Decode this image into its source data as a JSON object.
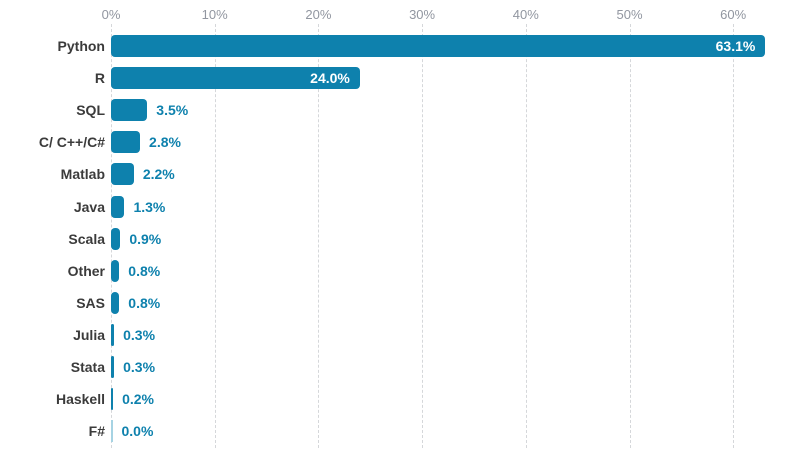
{
  "chart_data": {
    "type": "bar",
    "orientation": "horizontal",
    "title": "",
    "xlabel": "",
    "ylabel": "",
    "categories": [
      "Python",
      "R",
      "SQL",
      "C/ C++/C#",
      "Matlab",
      "Java",
      "Scala",
      "Other",
      "SAS",
      "Julia",
      "Stata",
      "Haskell",
      "F#"
    ],
    "values": [
      63.1,
      24.0,
      3.5,
      2.8,
      2.2,
      1.3,
      0.9,
      0.8,
      0.8,
      0.3,
      0.3,
      0.2,
      0.0
    ],
    "value_labels": [
      "63.1%",
      "24.0%",
      "3.5%",
      "2.8%",
      "2.2%",
      "1.3%",
      "0.9%",
      "0.8%",
      "0.8%",
      "0.3%",
      "0.3%",
      "0.2%",
      "0.0%"
    ],
    "x_ticks": [
      {
        "label": "0%",
        "value": 0
      },
      {
        "label": "10%",
        "value": 10
      },
      {
        "label": "20%",
        "value": 20
      },
      {
        "label": "30%",
        "value": 30
      },
      {
        "label": "40%",
        "value": 40
      },
      {
        "label": "50%",
        "value": 50
      },
      {
        "label": "60%",
        "value": 60
      }
    ],
    "xlim": [
      0,
      66.7
    ],
    "grid": "dashed-vertical",
    "legend": "none",
    "colors": {
      "bar": "#0e81ad",
      "zero_bar": "#a6d3e3",
      "value_inside": "#ffffff",
      "value_outside": "#0e81ad",
      "category_label": "#3b3b3b",
      "tick_label": "#9196a0",
      "gridline": "#d5d7da",
      "background": "#ffffff"
    }
  }
}
